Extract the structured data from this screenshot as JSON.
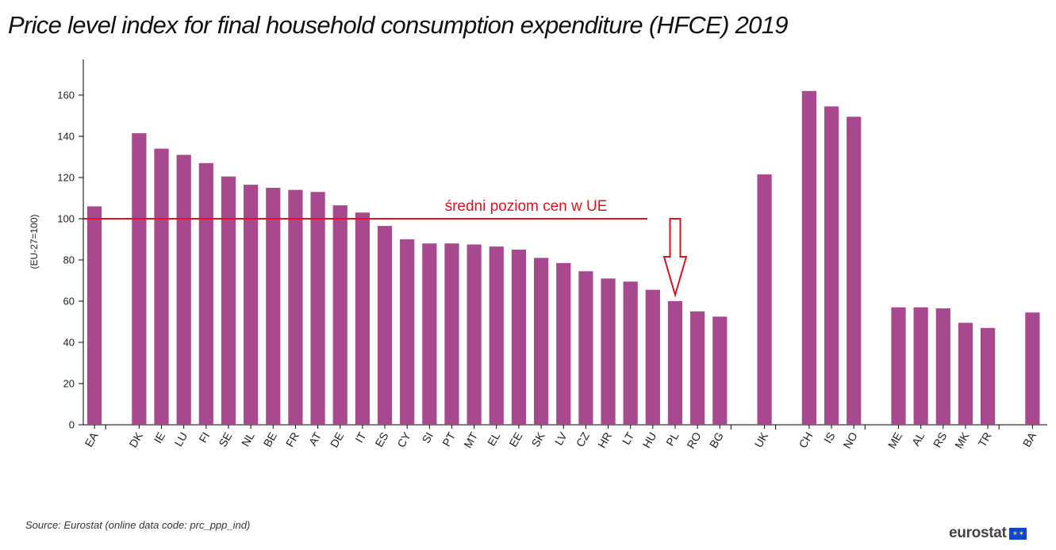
{
  "title": "Price level index for final household consumption expenditure (HFCE) 2019",
  "source": "Source: Eurostat (online data code: prc_ppp_ind)",
  "logo_text": "eurostat",
  "colors": {
    "bar": "#a8488f",
    "reference_line": "#e0141e",
    "annotation_text": "#d9141e",
    "arrow": "#d9141e",
    "axis": "#000000"
  },
  "chart_data": {
    "type": "bar",
    "title": "Price level index for final household consumption expenditure (HFCE) 2019",
    "ylabel": "(EU-27=100)",
    "xlabel": "",
    "ylim": [
      0,
      175
    ],
    "yticks": [
      0,
      20,
      40,
      60,
      80,
      100,
      120,
      140,
      160
    ],
    "grid": false,
    "groups": [
      {
        "categories": [
          "EA"
        ],
        "values": [
          106
        ]
      },
      {
        "categories": [
          "DK",
          "IE",
          "LU",
          "FI",
          "SE",
          "NL",
          "BE",
          "FR",
          "AT",
          "DE",
          "IT",
          "ES",
          "CY",
          "SI",
          "PT",
          "MT",
          "EL",
          "EE",
          "SK",
          "LV",
          "CZ",
          "HR",
          "LT",
          "HU",
          "PL",
          "RO",
          "BG"
        ],
        "values": [
          141.5,
          134,
          131,
          127,
          120.5,
          116.5,
          115,
          114,
          113,
          106.5,
          103,
          96.5,
          90,
          88,
          88,
          87.5,
          86.5,
          85,
          81,
          78.5,
          74.5,
          71,
          69.5,
          65.5,
          60,
          55,
          52.5
        ]
      },
      {
        "categories": [
          "UK"
        ],
        "values": [
          121.5
        ]
      },
      {
        "categories": [
          "CH",
          "IS",
          "NO"
        ],
        "values": [
          162,
          154.5,
          149.5
        ]
      },
      {
        "categories": [
          "ME",
          "AL",
          "RS",
          "MK",
          "TR"
        ],
        "values": [
          57,
          57,
          56.5,
          49.5,
          47
        ]
      },
      {
        "categories": [
          "BA"
        ],
        "values": [
          54.5
        ]
      }
    ],
    "annotations": [
      {
        "type": "hline",
        "y": 100,
        "label": "średni poziom cen w UE"
      },
      {
        "type": "arrow",
        "target": "PL"
      }
    ]
  }
}
